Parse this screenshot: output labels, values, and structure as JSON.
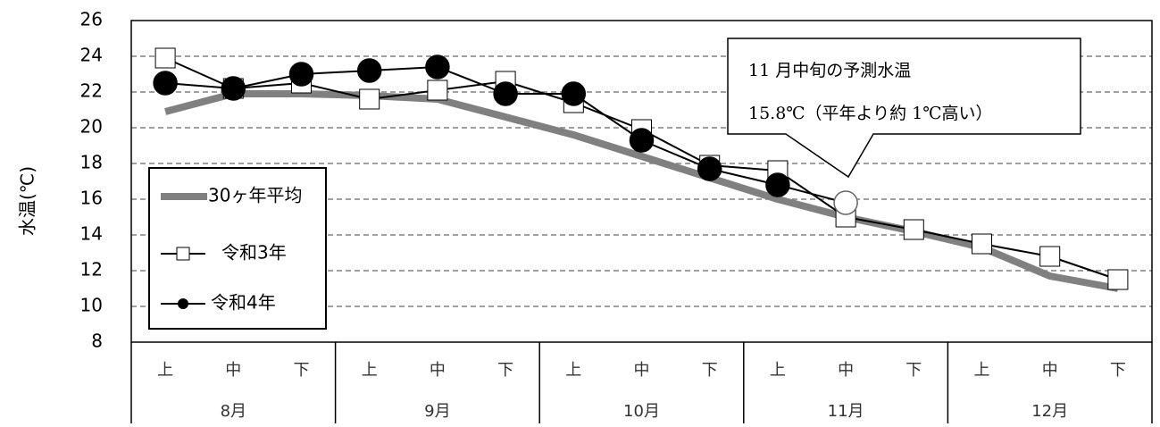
{
  "chart_data": {
    "type": "line",
    "y_label": "水温(℃)",
    "categories": [
      "上",
      "中",
      "下",
      "上",
      "中",
      "下",
      "上",
      "中",
      "下",
      "上",
      "中",
      "下",
      "上",
      "中",
      "下"
    ],
    "groups": [
      "8月",
      "9月",
      "10月",
      "11月",
      "12月"
    ],
    "series": [
      {
        "name": "30ヶ年平均",
        "color": "#808080",
        "values": [
          20.9,
          21.9,
          21.9,
          21.8,
          21.6,
          20.6,
          19.6,
          18.4,
          17.2,
          16.0,
          15.0,
          14.2,
          13.3,
          11.7,
          11.0
        ]
      },
      {
        "name": "令和3年",
        "color": "#000000",
        "marker": "square",
        "values": [
          23.9,
          22.2,
          22.5,
          21.6,
          22.1,
          22.6,
          21.4,
          19.9,
          17.9,
          17.6,
          15.0,
          14.3,
          13.5,
          12.8,
          11.5
        ]
      },
      {
        "name": "令和4年",
        "color": "#000000",
        "marker": "circle",
        "values": [
          22.5,
          22.2,
          23.0,
          23.2,
          23.4,
          21.9,
          21.9,
          19.3,
          17.7,
          16.8,
          15.8,
          null,
          null,
          null,
          null
        ],
        "point_fills": [
          "#000000",
          "#000000",
          "#000000",
          "#000000",
          "#000000",
          "#000000",
          "#000000",
          "#000000",
          "#000000",
          "#000000",
          "#ffffff",
          null,
          null,
          null,
          null
        ]
      }
    ],
    "annotation": [
      "11 月中旬の予測水温",
      "15.8℃（平年より約 1℃高い）"
    ],
    "ylim": [
      8,
      26
    ],
    "yticks": [
      8,
      10,
      12,
      14,
      16,
      18,
      20,
      22,
      24,
      26
    ],
    "grid": true,
    "legend": "lower-left"
  }
}
